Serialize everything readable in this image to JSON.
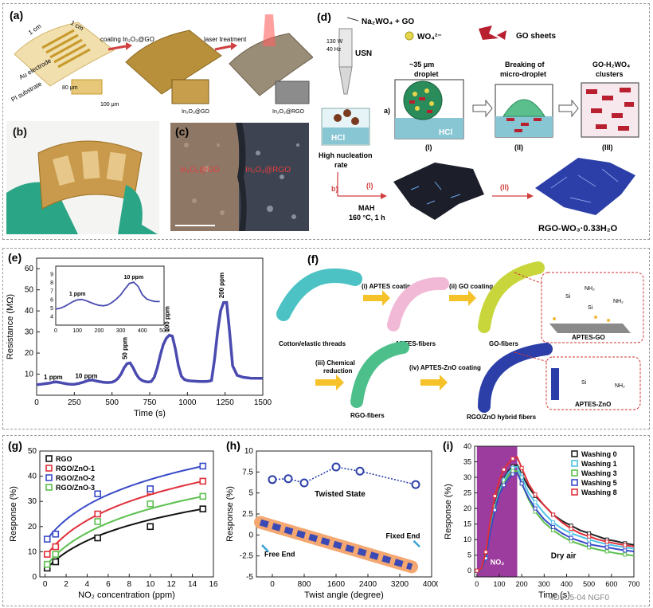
{
  "panels": {
    "a": {
      "label": "(a)",
      "dim1": "1 cm",
      "dim2": "1 cm",
      "au_electrode": "Au electrode",
      "pi_substrate": "PI substrate",
      "step1": "coating In₂O₃@GO",
      "step2": "laser treatment",
      "gap1": "80 μm",
      "gap2": "100 μm",
      "mat1": "In₂O₃@GO",
      "mat2": "In₂O₃@RGO"
    },
    "b": {
      "label": "(b)"
    },
    "c": {
      "label": "(c)",
      "left": "In₂O₃@GO",
      "right": "In₂O₃@RGO"
    },
    "d": {
      "label": "(d)",
      "reactant": "Na₂WO₄ + GO",
      "ion": "WO₄²⁻",
      "sheets": "GO sheets",
      "power": "130 W",
      "freq": "40 Hz",
      "usn": "USN",
      "droplet_size": "~35 μm",
      "droplet": "droplet",
      "breaking": "Breaking of",
      "micro": "micro-droplet",
      "clusters_1": "GO-H₂WO₄",
      "clusters_2": "clusters",
      "hcl": "HCl",
      "nucleation_1": "High nucleation",
      "nucleation_2": "rate",
      "step_a": "a)",
      "step_b": "b)",
      "i": "(I)",
      "ii": "(II)",
      "iii": "(III)",
      "mah": "MAH",
      "cond": "160 °C, 1 h",
      "product": "RGO-WO₃·0.33H₂O"
    },
    "f": {
      "label": "(f)",
      "s1": "(i) APTES coating",
      "s2": "(ii) GO coating",
      "s3a": "(iii) Chemical",
      "s3b": "reduction",
      "s4": "(iv) APTES-ZnO coating",
      "t1": "Cotton/elastic threads",
      "t2": "APTES-fibers",
      "t3": "GO-fibers",
      "t4": "RGO-fibers",
      "t5": "RGO/ZnO hybrid fibers",
      "z1": "APTES-GO",
      "z2": "APTES-ZnO"
    },
    "g": {
      "label": "(g)"
    },
    "h": {
      "label": "(h)",
      "twisted": "Twisted State",
      "free": "Free End",
      "fixed": "Fixed End"
    },
    "i": {
      "label": "(i)",
      "no2": "NO₂",
      "dry": "Dry air"
    }
  },
  "watermark": "4D5U5-04 NGF0",
  "chart_data": [
    {
      "panel": "e",
      "type": "line",
      "xlabel": "Time (s)",
      "ylabel": "Resistance (MΩ)",
      "xlim": [
        0,
        1500
      ],
      "ylim": [
        0,
        65
      ],
      "xticks": [
        0,
        250,
        500,
        750,
        1000,
        1250,
        1500
      ],
      "yticks": [
        10,
        20,
        30,
        40,
        50,
        60
      ],
      "color": "#4a4ab0",
      "series": [
        {
          "x": [
            0,
            30,
            60,
            90,
            110,
            130,
            150,
            170,
            190,
            210,
            230,
            250,
            280,
            310,
            340,
            370,
            400,
            440,
            470,
            500,
            520,
            540,
            560,
            580,
            600,
            620,
            640,
            660,
            680,
            700,
            720,
            740,
            760,
            780,
            800,
            820,
            840,
            860,
            880,
            900,
            920,
            940,
            960,
            980,
            1000,
            1020,
            1040,
            1060,
            1080,
            1100,
            1120,
            1140,
            1160,
            1180,
            1200,
            1220,
            1240,
            1260,
            1280,
            1300,
            1330,
            1370,
            1420,
            1500
          ],
          "y": [
            5,
            5.2,
            5.5,
            5.8,
            6.2,
            6.3,
            6.1,
            5.8,
            5.5,
            5.3,
            5.2,
            5.2,
            5.6,
            6.2,
            7,
            7.2,
            6.7,
            6.2,
            6,
            6.2,
            6.8,
            8,
            10,
            13,
            15,
            15.3,
            13,
            10,
            8,
            7,
            6.5,
            6.3,
            6.5,
            8.5,
            13,
            19,
            24,
            27,
            28.5,
            28,
            22,
            14,
            9,
            7.5,
            7,
            6.8,
            6.7,
            6.6,
            6.5,
            6.5,
            6.5,
            6.6,
            7,
            17,
            30,
            40,
            44,
            44,
            30,
            14,
            9.5,
            8.5,
            8.1,
            8
          ]
        }
      ],
      "annotations": [
        "1 ppm",
        "10 ppm",
        "50 ppm",
        "100 ppm",
        "200 ppm"
      ],
      "inset": {
        "xlim": [
          0,
          500
        ],
        "ylim": [
          3,
          10
        ],
        "xticks": [
          0,
          100,
          200,
          300,
          400,
          500
        ],
        "yticks": [
          4,
          5,
          6,
          7,
          8,
          9
        ],
        "x": [
          0,
          20,
          40,
          60,
          80,
          100,
          120,
          140,
          160,
          180,
          200,
          220,
          240,
          260,
          280,
          300,
          320,
          340,
          360,
          380,
          400,
          420,
          440,
          460,
          480
        ],
        "y": [
          4.9,
          5.0,
          5.2,
          5.5,
          5.8,
          6.0,
          6.05,
          5.9,
          5.7,
          5.5,
          5.35,
          5.3,
          5.4,
          5.7,
          6.1,
          6.6,
          7.3,
          7.95,
          8.1,
          7.6,
          6.6,
          6.1,
          5.9,
          5.8,
          5.8
        ],
        "annotations": [
          "1 ppm",
          "10 ppm"
        ]
      }
    },
    {
      "panel": "g",
      "type": "scatter",
      "xlabel": "NO₂ concentration (ppm)",
      "ylabel": "Response (%)",
      "xlim": [
        -0.5,
        16
      ],
      "ylim": [
        0,
        50
      ],
      "xticks": [
        0,
        2,
        4,
        6,
        8,
        10,
        12,
        14,
        16
      ],
      "yticks": [
        0,
        10,
        20,
        30,
        40,
        50
      ],
      "legend": "top-left",
      "x": [
        0.2,
        1,
        5,
        10,
        15
      ],
      "series": [
        {
          "name": "RGO",
          "color": "#111111",
          "values": [
            3.5,
            6,
            15.5,
            20,
            27
          ]
        },
        {
          "name": "RGO/ZnO-1",
          "color": "#e0303a",
          "values": [
            9,
            12,
            25,
            34,
            38
          ]
        },
        {
          "name": "RGO/ZnO-2",
          "color": "#3a4bc8",
          "values": [
            15,
            17,
            33,
            35,
            44
          ]
        },
        {
          "name": "RGO/ZnO-3",
          "color": "#5cc04e",
          "values": [
            5,
            9,
            22,
            29,
            32
          ]
        }
      ]
    },
    {
      "panel": "h",
      "type": "line",
      "xlabel": "Twist angle (degree)",
      "ylabel": "Response (%)",
      "xlim": [
        -400,
        4000
      ],
      "ylim": [
        -5,
        10
      ],
      "xticks": [
        0,
        800,
        1600,
        2400,
        3200,
        4000
      ],
      "yticks": [
        -5,
        -2.5,
        0,
        2.5,
        5,
        7.5,
        10
      ],
      "color": "#2c3fa8",
      "series": [
        {
          "x": [
            0,
            400,
            800,
            1600,
            2200,
            3600
          ],
          "y": [
            6.6,
            6.7,
            6.2,
            8.1,
            7.6,
            6.0
          ]
        }
      ]
    },
    {
      "panel": "i",
      "type": "line",
      "xlabel": "Time (s)",
      "ylabel": "Response (%)",
      "xlim": [
        -10,
        700
      ],
      "ylim": [
        -2,
        40
      ],
      "xticks": [
        0,
        100,
        200,
        300,
        400,
        500,
        600,
        700
      ],
      "yticks": [
        0,
        5,
        10,
        15,
        20,
        25,
        30,
        35,
        40
      ],
      "legend": "top-right",
      "x": [
        0,
        20,
        40,
        60,
        80,
        100,
        120,
        140,
        160,
        180,
        200,
        230,
        260,
        300,
        340,
        380,
        420,
        460,
        500,
        540,
        580,
        620,
        660,
        700
      ],
      "series": [
        {
          "name": "Washing 0",
          "color": "#222222",
          "values": [
            0,
            0.5,
            5,
            14,
            21,
            26,
            29.5,
            32,
            33.5,
            34,
            31,
            27,
            24,
            21,
            18,
            16,
            14.5,
            13,
            12,
            11,
            10,
            9.5,
            8.8,
            8.3
          ]
        },
        {
          "name": "Washing 1",
          "color": "#4fc3e8",
          "values": [
            0,
            0.4,
            4.5,
            13.5,
            20.5,
            25.5,
            29,
            31.5,
            33,
            33.5,
            30,
            25,
            22,
            18.5,
            15.5,
            13.5,
            12,
            11,
            10,
            9.2,
            8.5,
            8,
            7.5,
            7.1
          ]
        },
        {
          "name": "Washing 3",
          "color": "#5cc04e",
          "values": [
            0,
            0.3,
            4,
            13,
            20,
            25,
            28,
            30.5,
            32,
            32,
            28,
            23,
            19,
            15.5,
            13,
            11,
            9.5,
            8.5,
            7.5,
            6.8,
            6.2,
            5.6,
            5.2,
            4.8
          ]
        },
        {
          "name": "Washing 5",
          "color": "#3a4bc8",
          "values": [
            0,
            0.3,
            4,
            12.5,
            19.5,
            24.5,
            27.5,
            29.5,
            31,
            31.5,
            28,
            23.5,
            20,
            16.5,
            14,
            12,
            10.5,
            9.5,
            8.5,
            8,
            7.5,
            7,
            6.5,
            6.2
          ]
        },
        {
          "name": "Washing 8",
          "color": "#e0303a",
          "values": [
            0,
            0.6,
            6,
            16,
            24,
            29,
            32.5,
            34.5,
            36,
            36.5,
            33,
            28,
            24.5,
            21,
            18,
            15.5,
            13.5,
            12,
            11,
            10,
            9.3,
            8.7,
            8.2,
            7.8
          ]
        }
      ]
    }
  ]
}
